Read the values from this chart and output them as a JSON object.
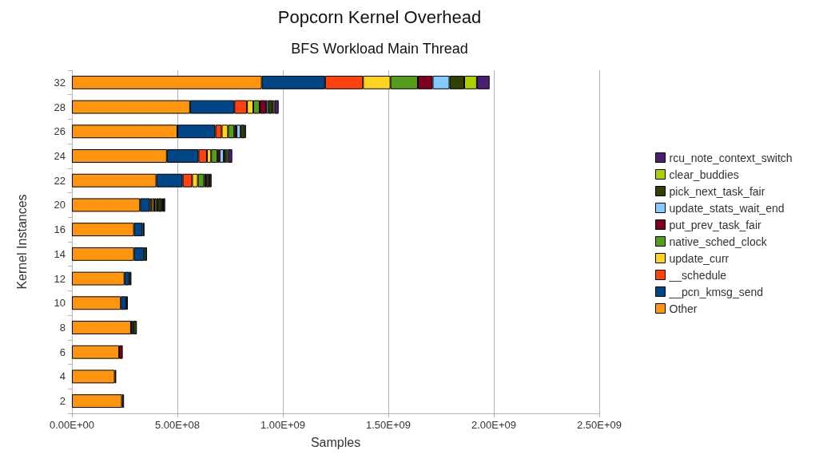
{
  "chart_data": {
    "type": "bar",
    "orientation": "horizontal",
    "stacked": true,
    "title": "Popcorn Kernel Overhead",
    "subtitle": "BFS Workload Main Thread",
    "xlabel": "Samples",
    "ylabel": "Kernel Instances",
    "categories": [
      "32",
      "28",
      "26",
      "24",
      "22",
      "20",
      "16",
      "14",
      "12",
      "10",
      "8",
      "6",
      "4",
      "2"
    ],
    "series": [
      {
        "name": "Other",
        "color": "#ff950e",
        "values": [
          900000000,
          560000000,
          500000000,
          450000000,
          400000000,
          323000000,
          294000000,
          294000000,
          249000000,
          232000000,
          280000000,
          224000000,
          203000000,
          237000000
        ]
      },
      {
        "name": "__pcn_kmsg_send",
        "color": "#004586",
        "values": [
          300000000,
          210000000,
          180000000,
          150000000,
          125000000,
          47000000,
          41000000,
          48000000,
          23000000,
          25000000,
          11000000,
          null,
          7000000,
          10000000
        ]
      },
      {
        "name": "__schedule",
        "color": "#ff420e",
        "values": [
          180000000,
          60000000,
          30000000,
          40000000,
          45000000,
          10000000,
          null,
          null,
          null,
          null,
          null,
          null,
          null,
          null
        ]
      },
      {
        "name": "update_curr",
        "color": "#ffd320",
        "values": [
          130000000,
          30000000,
          30000000,
          20000000,
          27000000,
          10000000,
          null,
          null,
          null,
          null,
          null,
          null,
          null,
          null
        ]
      },
      {
        "name": "native_sched_clock",
        "color": "#579d1c",
        "values": [
          130000000,
          30000000,
          30000000,
          30000000,
          30000000,
          10000000,
          null,
          null,
          null,
          null,
          null,
          null,
          null,
          null
        ]
      },
      {
        "name": "put_prev_task_fair",
        "color": "#7e0021",
        "values": [
          70000000,
          30000000,
          10000000,
          10000000,
          10000000,
          10000000,
          null,
          null,
          null,
          null,
          null,
          17000000,
          null,
          null
        ]
      },
      {
        "name": "update_stats_wait_end",
        "color": "#83caff",
        "values": [
          80000000,
          10000000,
          20000000,
          20000000,
          null,
          null,
          null,
          null,
          null,
          null,
          null,
          null,
          null,
          null
        ]
      },
      {
        "name": "pick_next_task_fair",
        "color": "#314004",
        "values": [
          70000000,
          20000000,
          20000000,
          10000000,
          15000000,
          15000000,
          9000000,
          14000000,
          10000000,
          8000000,
          17000000,
          null,
          null,
          null
        ]
      },
      {
        "name": "clear_buddies",
        "color": "#aecf00",
        "values": [
          60000000,
          10000000,
          null,
          10000000,
          null,
          7000000,
          null,
          null,
          null,
          null,
          null,
          null,
          null,
          null
        ]
      },
      {
        "name": "rcu_note_context_switch",
        "color": "#4b1f6f",
        "values": [
          60000000,
          20000000,
          5000000,
          20000000,
          10000000,
          10000000,
          null,
          null,
          null,
          null,
          null,
          null,
          null,
          null
        ]
      }
    ],
    "xlim": [
      0,
      2500000000
    ],
    "xticks": [
      {
        "value": 0,
        "label": "0.00E+00"
      },
      {
        "value": 500000000,
        "label": "5.00E+08"
      },
      {
        "value": 1000000000,
        "label": "1.00E+09"
      },
      {
        "value": 1500000000,
        "label": "1.50E+09"
      },
      {
        "value": 2000000000,
        "label": "2.00E+09"
      },
      {
        "value": 2500000000,
        "label": "2.50E+09"
      }
    ],
    "grid": "x",
    "legend": "right"
  }
}
